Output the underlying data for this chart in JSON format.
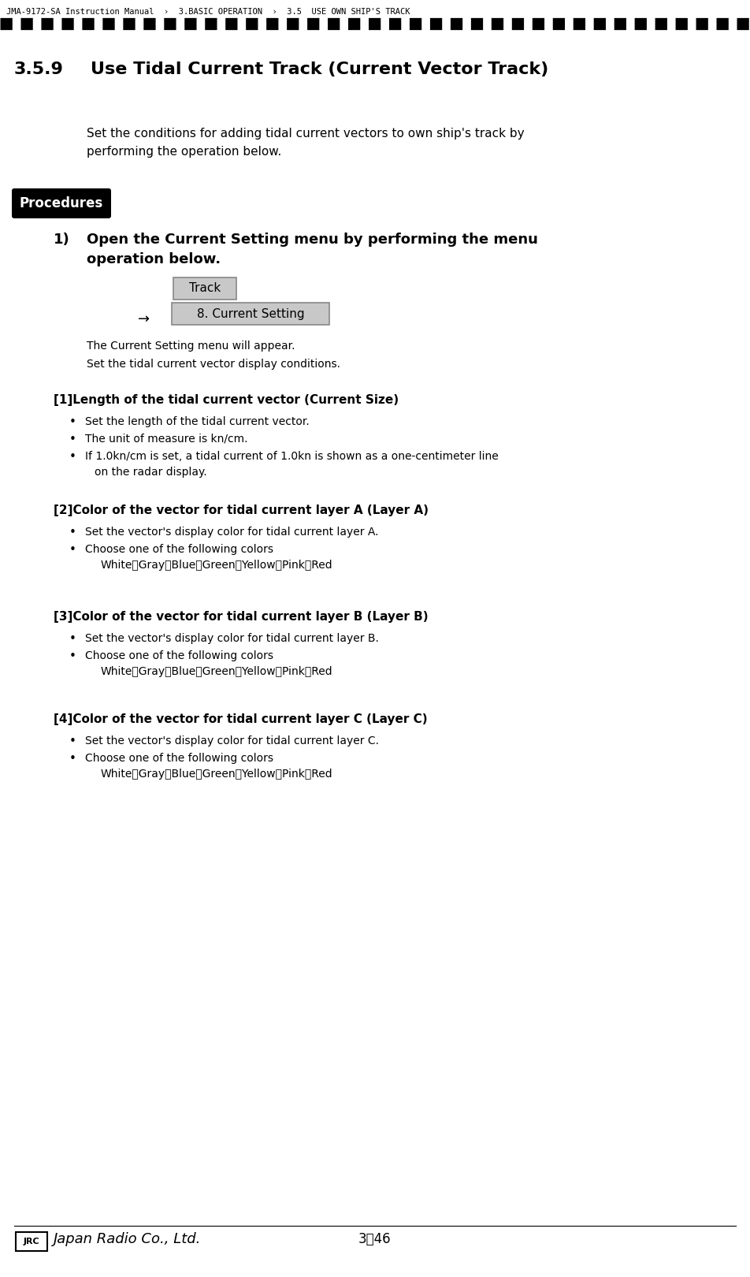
{
  "page_title_breadcrumb": "JMA-9172-SA Instruction Manual  ›  3.BASIC OPERATION  ›  3.5  USE OWN SHIP'S TRACK",
  "section_number": "3.5.9",
  "section_title": "Use Tidal Current Track (Current Vector Track)",
  "intro_line1": "Set the conditions for adding tidal current vectors to own ship's track by",
  "intro_line2": "performing the operation below.",
  "procedures_label": "Procedures",
  "step1_line1": "Open the Current Setting menu by performing the menu",
  "step1_line2": "operation below.",
  "button1_text": "Track",
  "arrow_text": "→",
  "button2_text": "8. Current Setting",
  "after_text1": "The Current Setting menu will appear.",
  "after_text2": "Set the tidal current vector display conditions.",
  "section1_title": "[1]Length of the tidal current vector (Current Size)",
  "section1_b1": "Set the length of the tidal current vector.",
  "section1_b2": "The unit of measure is kn/cm.",
  "section1_b3a": "If 1.0kn/cm is set, a tidal current of 1.0kn is shown as a one-centimeter line",
  "section1_b3b": "on the radar display.",
  "section2_title": "[2]Color of the vector for tidal current layer A (Layer A)",
  "section2_b1": "Set the vector's display color for tidal current layer A.",
  "section2_b2": "Choose one of the following colors",
  "section2_colors": "White、Gray、Blue、Green、Yellow、Pink、Red",
  "section3_title": "[3]Color of the vector for tidal current layer B (Layer B)",
  "section3_b1": "Set the vector's display color for tidal current layer B.",
  "section3_b2": "Choose one of the following colors",
  "section3_colors": "White、Gray、Blue、Green、Yellow、Pink、Red",
  "section4_title": "[4]Color of the vector for tidal current layer C (Layer C)",
  "section4_b1": "Set the vector's display color for tidal current layer C.",
  "section4_b2": "Choose one of the following colors",
  "section4_colors": "White、Gray、Blue、Green、Yellow、Pink、Red",
  "footer_page": "3－46",
  "footer_logo_text": "JRC",
  "footer_company": "Japan Radio Co., Ltd.",
  "bg_color": "#ffffff",
  "text_color": "#000000",
  "procedures_bg": "#000000",
  "procedures_text_color": "#ffffff",
  "dashed_line_color": "#000000",
  "button_bg": "#c8c8c8",
  "button_border": "#888888"
}
